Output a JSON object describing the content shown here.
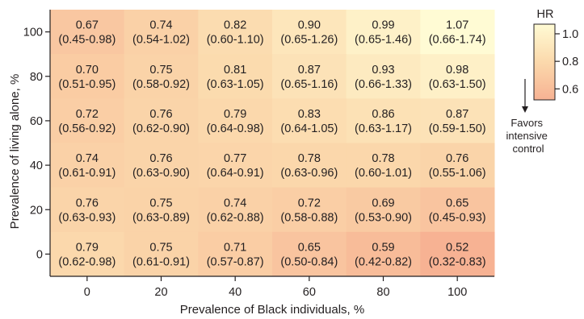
{
  "chart_data": {
    "type": "heatmap",
    "xlabel": "Prevalence of Black individuals, %",
    "ylabel": "Prevalence of living alone, %",
    "x": [
      0,
      20,
      40,
      60,
      80,
      100
    ],
    "y": [
      100,
      80,
      60,
      40,
      20,
      0
    ],
    "cells": [
      [
        {
          "hr": "0.67",
          "ci": "(0.45-0.98)",
          "v": 0.67
        },
        {
          "hr": "0.74",
          "ci": "(0.54-1.02)",
          "v": 0.74
        },
        {
          "hr": "0.82",
          "ci": "(0.60-1.10)",
          "v": 0.82
        },
        {
          "hr": "0.90",
          "ci": "(0.65-1.26)",
          "v": 0.9
        },
        {
          "hr": "0.99",
          "ci": "(0.65-1.46)",
          "v": 0.99
        },
        {
          "hr": "1.07",
          "ci": "(0.66-1.74)",
          "v": 1.07
        }
      ],
      [
        {
          "hr": "0.70",
          "ci": "(0.51-0.95)",
          "v": 0.7
        },
        {
          "hr": "0.75",
          "ci": "(0.58-0.92)",
          "v": 0.75
        },
        {
          "hr": "0.81",
          "ci": "(0.63-1.05)",
          "v": 0.81
        },
        {
          "hr": "0.87",
          "ci": "(0.65-1.16)",
          "v": 0.87
        },
        {
          "hr": "0.93",
          "ci": "(0.66-1.33)",
          "v": 0.93
        },
        {
          "hr": "0.98",
          "ci": "(0.63-1.50)",
          "v": 0.98
        }
      ],
      [
        {
          "hr": "0.72",
          "ci": "(0.56-0.92)",
          "v": 0.72
        },
        {
          "hr": "0.76",
          "ci": "(0.62-0.90)",
          "v": 0.76
        },
        {
          "hr": "0.79",
          "ci": "(0.64-0.98)",
          "v": 0.79
        },
        {
          "hr": "0.83",
          "ci": "(0.64-1.05)",
          "v": 0.83
        },
        {
          "hr": "0.86",
          "ci": "(0.63-1.17)",
          "v": 0.86
        },
        {
          "hr": "0.87",
          "ci": "(0.59-1.50)",
          "v": 0.87
        }
      ],
      [
        {
          "hr": "0.74",
          "ci": "(0.61-0.91)",
          "v": 0.74
        },
        {
          "hr": "0.76",
          "ci": "(0.63-0.90)",
          "v": 0.76
        },
        {
          "hr": "0.77",
          "ci": "(0.64-0.91)",
          "v": 0.77
        },
        {
          "hr": "0.78",
          "ci": "(0.63-0.96)",
          "v": 0.78
        },
        {
          "hr": "0.78",
          "ci": "(0.60-1.01)",
          "v": 0.78
        },
        {
          "hr": "0.76",
          "ci": "(0.55-1.06)",
          "v": 0.76
        }
      ],
      [
        {
          "hr": "0.76",
          "ci": "(0.63-0.93)",
          "v": 0.76
        },
        {
          "hr": "0.75",
          "ci": "(0.63-0.89)",
          "v": 0.75
        },
        {
          "hr": "0.74",
          "ci": "(0.62-0.88)",
          "v": 0.74
        },
        {
          "hr": "0.72",
          "ci": "(0.58-0.88)",
          "v": 0.72
        },
        {
          "hr": "0.69",
          "ci": "(0.53-0.90)",
          "v": 0.69
        },
        {
          "hr": "0.65",
          "ci": "(0.45-0.93)",
          "v": 0.65
        }
      ],
      [
        {
          "hr": "0.79",
          "ci": "(0.62-0.98)",
          "v": 0.79
        },
        {
          "hr": "0.75",
          "ci": "(0.61-0.91)",
          "v": 0.75
        },
        {
          "hr": "0.71",
          "ci": "(0.57-0.87)",
          "v": 0.71
        },
        {
          "hr": "0.65",
          "ci": "(0.50-0.84)",
          "v": 0.65
        },
        {
          "hr": "0.59",
          "ci": "(0.42-0.82)",
          "v": 0.59
        },
        {
          "hr": "0.52",
          "ci": "(0.32-0.83)",
          "v": 0.52
        }
      ]
    ],
    "legend": {
      "title": "HR",
      "ticks": [
        "1.0",
        "0.8",
        "0.6"
      ],
      "tick_values": [
        1.0,
        0.8,
        0.6
      ],
      "range": [
        0.52,
        1.07
      ],
      "annotation": [
        "Favors",
        "intensive",
        "control"
      ]
    },
    "colors": {
      "low": "#f7b293",
      "mid": "#fbd9ac",
      "high": "#fffbd4",
      "axis": "#231f20"
    },
    "grid": false
  }
}
